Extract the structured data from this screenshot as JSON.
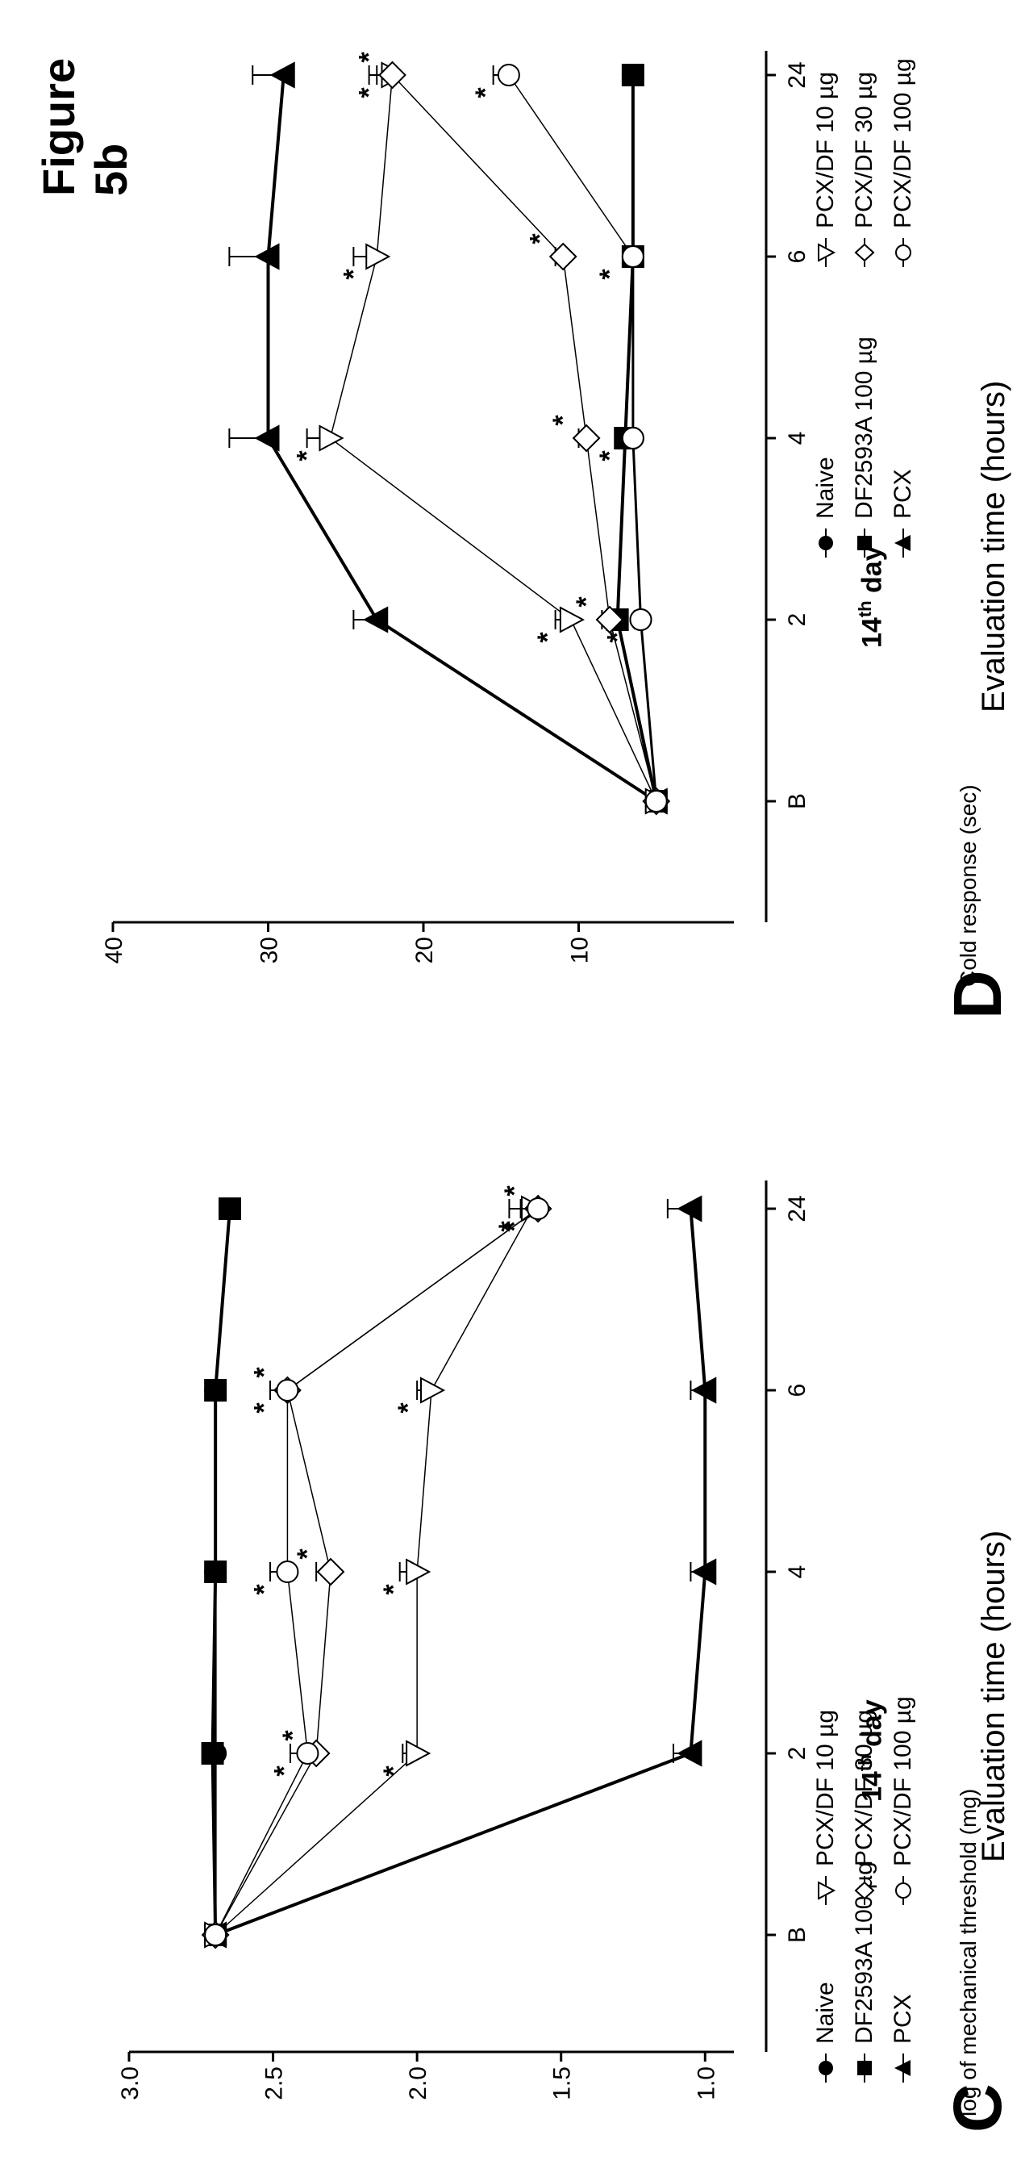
{
  "figure_title": "Figure 5b",
  "marker_legend": {
    "Naive": "filled-circle",
    "DF2593A 100 µg": "filled-square",
    "PCX": "filled-triangle",
    "PCX/DF 10 µg": "open-triangle-down",
    "PCX/DF 30 µg": "open-diamond",
    "PCX/DF 100 µg": "open-circle"
  },
  "colors": {
    "ink": "#000000",
    "background": "#ffffff"
  },
  "chart_data": [
    {
      "panel": "C",
      "type": "line",
      "title": "14th day",
      "title_main": "14",
      "title_sup": "th",
      "title_rest": " day",
      "xlabel": "Evaluation time (hours)",
      "ylabel": "log of mechanical threshold (mg)",
      "categories": [
        "B",
        "2",
        "4",
        "6",
        "24"
      ],
      "ylim": [
        0.9,
        3.0
      ],
      "yticks": [
        "1.0",
        "1.5",
        "2.0",
        "2.5",
        "3.0"
      ],
      "legend": [
        "Naive",
        "DF2593A 100 µg",
        "PCX",
        "PCX/DF 10 µg",
        "PCX/DF 30 µg",
        "PCX/DF 100 µg"
      ],
      "series": [
        {
          "name": "Naive",
          "values": [
            2.7,
            2.7,
            2.7,
            2.7,
            2.65
          ]
        },
        {
          "name": "DF2593A 100 µg",
          "values": [
            2.7,
            2.71,
            2.7,
            2.7,
            2.65
          ]
        },
        {
          "name": "PCX",
          "values": [
            2.7,
            1.05,
            1.0,
            1.0,
            1.05
          ]
        },
        {
          "name": "PCX/DF 10 µg",
          "values": [
            2.7,
            2.0,
            2.0,
            1.95,
            1.6
          ]
        },
        {
          "name": "PCX/DF 30 µg",
          "values": [
            2.7,
            2.35,
            2.3,
            2.45,
            1.58
          ]
        },
        {
          "name": "PCX/DF 100 µg",
          "values": [
            2.7,
            2.38,
            2.45,
            2.45,
            1.58
          ]
        }
      ],
      "error_bars": {
        "PCX": [
          0,
          0.06,
          0.05,
          0.05,
          0.08
        ],
        "PCX/DF 10 µg": [
          0,
          0.05,
          0.06,
          0.05,
          0.08
        ],
        "PCX/DF 30 µg": [
          0,
          0.05,
          0.05,
          0.06,
          0.06
        ],
        "PCX/DF 100 µg": [
          0,
          0.06,
          0.06,
          0.06,
          0.06
        ]
      },
      "annotations": "*"
    },
    {
      "panel": "D",
      "type": "line",
      "title": "14th day",
      "title_main": "14",
      "title_sup": "th",
      "title_rest": " day",
      "xlabel": "Evaluation time (hours)",
      "ylabel": "Cold response (sec)",
      "categories": [
        "B",
        "2",
        "4",
        "6",
        "24"
      ],
      "ylim": [
        0,
        40
      ],
      "yticks": [
        "10",
        "20",
        "30",
        "40"
      ],
      "legend": [
        "Naive",
        "DF2593A 100 µg",
        "PCX",
        "PCX/DF 10 µg",
        "PCX/DF 30 µg",
        "PCX/DF 100 µg"
      ],
      "series": [
        {
          "name": "Naive",
          "values": [
            5,
            6,
            6.5,
            6.5,
            6.5
          ]
        },
        {
          "name": "DF2593A 100 µg",
          "values": [
            5,
            7.5,
            7,
            6.5,
            6.5
          ]
        },
        {
          "name": "PCX",
          "values": [
            5,
            23,
            30,
            30,
            29
          ]
        },
        {
          "name": "PCX/DF 10 µg",
          "values": [
            5,
            10.5,
            26,
            23,
            22
          ]
        },
        {
          "name": "PCX/DF 30 µg",
          "values": [
            5,
            8,
            9.5,
            11,
            22
          ]
        },
        {
          "name": "PCX/DF 100 µg",
          "values": [
            5,
            6,
            6.5,
            6.5,
            14.5
          ]
        }
      ],
      "error_bars": {
        "PCX": [
          0,
          1.5,
          2.5,
          2.5,
          2
        ],
        "PCX/DF 10 µg": [
          0,
          1,
          1.5,
          1.5,
          1.5
        ],
        "PCX/DF 30 µg": [
          0,
          0.5,
          0.5,
          0.5,
          1
        ],
        "PCX/DF 100 µg": [
          0,
          0.4,
          0.4,
          0.4,
          1
        ]
      },
      "annotations": "*"
    }
  ]
}
